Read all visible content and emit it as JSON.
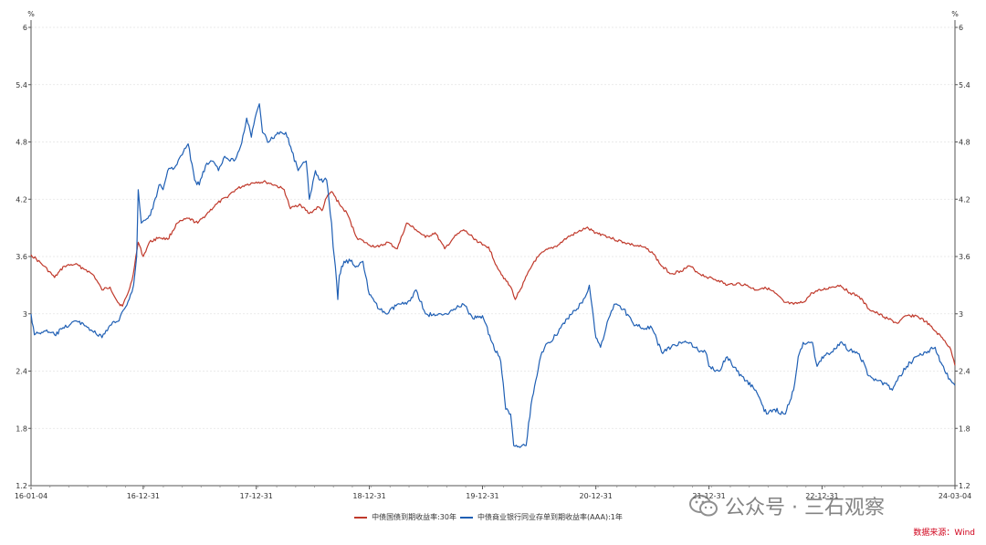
{
  "chart_data": {
    "type": "line",
    "title": "",
    "y_unit_left": "%",
    "y_unit_right": "%",
    "ylim": [
      1.2,
      6
    ],
    "yticks": [
      "6",
      "5.4",
      "4.8",
      "4.2",
      "3.6",
      "3",
      "2.4",
      "1.8",
      "1.2"
    ],
    "xlim": [
      "2016-01-04",
      "2024-03-04"
    ],
    "xticks": [
      {
        "label": "16-01-04",
        "date": "2016-01-04"
      },
      {
        "label": "16-12-31",
        "date": "2016-12-31"
      },
      {
        "label": "17-12-31",
        "date": "2017-12-31"
      },
      {
        "label": "18-12-31",
        "date": "2018-12-31"
      },
      {
        "label": "19-12-31",
        "date": "2019-12-31"
      },
      {
        "label": "20-12-31",
        "date": "2020-12-31"
      },
      {
        "label": "21-12-31",
        "date": "2021-12-31"
      },
      {
        "label": "22-12-31",
        "date": "2022-12-31"
      },
      {
        "label": "24-03-04",
        "date": "2024-03-04"
      }
    ],
    "grid": "horizontal-dashed",
    "legend_position": "bottom",
    "series": [
      {
        "name": "中债国债到期收益率:30年",
        "color": "#c0392b",
        "points": [
          [
            "2016-01-04",
            3.62
          ],
          [
            "2016-02-15",
            3.5
          ],
          [
            "2016-03-20",
            3.38
          ],
          [
            "2016-04-20",
            3.5
          ],
          [
            "2016-05-25",
            3.52
          ],
          [
            "2016-06-30",
            3.46
          ],
          [
            "2016-07-25",
            3.4
          ],
          [
            "2016-08-20",
            3.25
          ],
          [
            "2016-09-15",
            3.28
          ],
          [
            "2016-10-10",
            3.12
          ],
          [
            "2016-10-25",
            3.08
          ],
          [
            "2016-11-10",
            3.2
          ],
          [
            "2016-11-25",
            3.35
          ],
          [
            "2016-12-15",
            3.75
          ],
          [
            "2016-12-31",
            3.6
          ],
          [
            "2017-01-20",
            3.75
          ],
          [
            "2017-02-20",
            3.8
          ],
          [
            "2017-03-20",
            3.78
          ],
          [
            "2017-04-20",
            3.95
          ],
          [
            "2017-05-25",
            4.0
          ],
          [
            "2017-06-25",
            3.95
          ],
          [
            "2017-07-25",
            4.05
          ],
          [
            "2017-08-25",
            4.15
          ],
          [
            "2017-09-25",
            4.22
          ],
          [
            "2017-10-25",
            4.3
          ],
          [
            "2017-11-25",
            4.35
          ],
          [
            "2017-12-31",
            4.38
          ],
          [
            "2018-01-31",
            4.38
          ],
          [
            "2018-02-28",
            4.35
          ],
          [
            "2018-03-31",
            4.3
          ],
          [
            "2018-04-20",
            4.1
          ],
          [
            "2018-05-20",
            4.15
          ],
          [
            "2018-06-20",
            4.05
          ],
          [
            "2018-07-20",
            4.12
          ],
          [
            "2018-07-31",
            4.08
          ],
          [
            "2018-08-15",
            4.22
          ],
          [
            "2018-09-01",
            4.28
          ],
          [
            "2018-09-25",
            4.15
          ],
          [
            "2018-10-20",
            4.05
          ],
          [
            "2018-11-20",
            3.8
          ],
          [
            "2018-12-31",
            3.72
          ],
          [
            "2019-01-31",
            3.7
          ],
          [
            "2019-02-28",
            3.75
          ],
          [
            "2019-03-31",
            3.68
          ],
          [
            "2019-04-30",
            3.95
          ],
          [
            "2019-05-31",
            3.88
          ],
          [
            "2019-06-30",
            3.8
          ],
          [
            "2019-07-31",
            3.85
          ],
          [
            "2019-08-31",
            3.68
          ],
          [
            "2019-09-30",
            3.8
          ],
          [
            "2019-10-31",
            3.88
          ],
          [
            "2019-11-30",
            3.8
          ],
          [
            "2019-12-31",
            3.72
          ],
          [
            "2020-01-20",
            3.7
          ],
          [
            "2020-02-15",
            3.5
          ],
          [
            "2020-03-05",
            3.4
          ],
          [
            "2020-04-05",
            3.25
          ],
          [
            "2020-04-15",
            3.15
          ],
          [
            "2020-05-15",
            3.35
          ],
          [
            "2020-06-15",
            3.55
          ],
          [
            "2020-07-15",
            3.65
          ],
          [
            "2020-08-31",
            3.72
          ],
          [
            "2020-09-30",
            3.8
          ],
          [
            "2020-10-31",
            3.85
          ],
          [
            "2020-11-30",
            3.9
          ],
          [
            "2020-12-31",
            3.85
          ],
          [
            "2021-01-31",
            3.82
          ],
          [
            "2021-02-28",
            3.78
          ],
          [
            "2021-03-31",
            3.75
          ],
          [
            "2021-04-30",
            3.72
          ],
          [
            "2021-05-31",
            3.7
          ],
          [
            "2021-06-30",
            3.65
          ],
          [
            "2021-07-31",
            3.5
          ],
          [
            "2021-08-31",
            3.42
          ],
          [
            "2021-09-30",
            3.45
          ],
          [
            "2021-10-31",
            3.5
          ],
          [
            "2021-11-30",
            3.42
          ],
          [
            "2021-12-31",
            3.38
          ],
          [
            "2022-01-31",
            3.35
          ],
          [
            "2022-02-28",
            3.3
          ],
          [
            "2022-03-31",
            3.32
          ],
          [
            "2022-04-30",
            3.3
          ],
          [
            "2022-05-31",
            3.25
          ],
          [
            "2022-06-30",
            3.28
          ],
          [
            "2022-07-31",
            3.22
          ],
          [
            "2022-08-31",
            3.12
          ],
          [
            "2022-09-30",
            3.1
          ],
          [
            "2022-10-31",
            3.12
          ],
          [
            "2022-11-30",
            3.22
          ],
          [
            "2022-12-31",
            3.25
          ],
          [
            "2023-01-31",
            3.28
          ],
          [
            "2023-02-28",
            3.3
          ],
          [
            "2023-03-31",
            3.22
          ],
          [
            "2023-04-30",
            3.18
          ],
          [
            "2023-05-31",
            3.05
          ],
          [
            "2023-06-30",
            3.0
          ],
          [
            "2023-07-31",
            2.95
          ],
          [
            "2023-08-31",
            2.9
          ],
          [
            "2023-09-30",
            2.98
          ],
          [
            "2023-10-31",
            2.98
          ],
          [
            "2023-11-30",
            2.92
          ],
          [
            "2023-12-31",
            2.82
          ],
          [
            "2024-01-31",
            2.72
          ],
          [
            "2024-02-20",
            2.62
          ],
          [
            "2024-03-04",
            2.46
          ]
        ]
      },
      {
        "name": "中债商业银行同业存单到期收益率(AAA):1年",
        "color": "#1f5fb4",
        "points": [
          [
            "2016-01-04",
            3.0
          ],
          [
            "2016-01-15",
            2.78
          ],
          [
            "2016-02-15",
            2.82
          ],
          [
            "2016-03-20",
            2.78
          ],
          [
            "2016-04-20",
            2.85
          ],
          [
            "2016-05-20",
            2.92
          ],
          [
            "2016-06-20",
            2.9
          ],
          [
            "2016-07-20",
            2.82
          ],
          [
            "2016-08-20",
            2.75
          ],
          [
            "2016-09-15",
            2.88
          ],
          [
            "2016-10-10",
            2.92
          ],
          [
            "2016-10-31",
            3.05
          ],
          [
            "2016-11-20",
            3.2
          ],
          [
            "2016-11-30",
            3.3
          ],
          [
            "2016-12-10",
            3.6
          ],
          [
            "2016-12-15",
            4.3
          ],
          [
            "2016-12-25",
            3.95
          ],
          [
            "2017-01-15",
            4.0
          ],
          [
            "2017-01-31",
            4.1
          ],
          [
            "2017-02-20",
            4.35
          ],
          [
            "2017-03-05",
            4.3
          ],
          [
            "2017-03-20",
            4.5
          ],
          [
            "2017-04-15",
            4.55
          ],
          [
            "2017-05-10",
            4.7
          ],
          [
            "2017-05-25",
            4.78
          ],
          [
            "2017-06-15",
            4.4
          ],
          [
            "2017-06-30",
            4.35
          ],
          [
            "2017-07-20",
            4.55
          ],
          [
            "2017-08-10",
            4.6
          ],
          [
            "2017-08-31",
            4.5
          ],
          [
            "2017-09-20",
            4.65
          ],
          [
            "2017-10-20",
            4.6
          ],
          [
            "2017-11-10",
            4.75
          ],
          [
            "2017-11-30",
            5.05
          ],
          [
            "2017-12-15",
            4.85
          ],
          [
            "2017-12-31",
            5.1
          ],
          [
            "2018-01-10",
            5.2
          ],
          [
            "2018-01-20",
            4.9
          ],
          [
            "2018-02-10",
            4.8
          ],
          [
            "2018-03-10",
            4.9
          ],
          [
            "2018-04-05",
            4.9
          ],
          [
            "2018-04-25",
            4.7
          ],
          [
            "2018-05-15",
            4.5
          ],
          [
            "2018-06-10",
            4.6
          ],
          [
            "2018-06-20",
            4.2
          ],
          [
            "2018-07-10",
            4.5
          ],
          [
            "2018-07-25",
            4.4
          ],
          [
            "2018-08-15",
            4.4
          ],
          [
            "2018-08-31",
            3.95
          ],
          [
            "2018-09-05",
            3.7
          ],
          [
            "2018-09-12",
            3.5
          ],
          [
            "2018-09-20",
            3.15
          ],
          [
            "2018-09-25",
            3.4
          ],
          [
            "2018-10-10",
            3.55
          ],
          [
            "2018-10-31",
            3.55
          ],
          [
            "2018-11-20",
            3.5
          ],
          [
            "2018-12-10",
            3.55
          ],
          [
            "2018-12-31",
            3.2
          ],
          [
            "2019-01-31",
            3.05
          ],
          [
            "2019-02-28",
            3.0
          ],
          [
            "2019-03-31",
            3.1
          ],
          [
            "2019-04-30",
            3.1
          ],
          [
            "2019-05-31",
            3.25
          ],
          [
            "2019-06-30",
            3.0
          ],
          [
            "2019-07-31",
            2.98
          ],
          [
            "2019-08-31",
            3.0
          ],
          [
            "2019-09-30",
            3.05
          ],
          [
            "2019-10-31",
            3.1
          ],
          [
            "2019-11-30",
            2.95
          ],
          [
            "2019-12-31",
            2.98
          ],
          [
            "2020-01-31",
            2.7
          ],
          [
            "2020-02-28",
            2.5
          ],
          [
            "2020-03-15",
            2.0
          ],
          [
            "2020-03-31",
            1.95
          ],
          [
            "2020-04-10",
            1.62
          ],
          [
            "2020-04-30",
            1.6
          ],
          [
            "2020-05-20",
            1.62
          ],
          [
            "2020-06-05",
            2.05
          ],
          [
            "2020-06-20",
            2.3
          ],
          [
            "2020-07-10",
            2.6
          ],
          [
            "2020-07-31",
            2.7
          ],
          [
            "2020-08-31",
            2.8
          ],
          [
            "2020-09-30",
            2.95
          ],
          [
            "2020-10-31",
            3.05
          ],
          [
            "2020-11-30",
            3.2
          ],
          [
            "2020-12-10",
            3.3
          ],
          [
            "2020-12-20",
            3.05
          ],
          [
            "2020-12-31",
            2.75
          ],
          [
            "2021-01-15",
            2.65
          ],
          [
            "2021-02-10",
            2.95
          ],
          [
            "2021-02-28",
            3.1
          ],
          [
            "2021-03-31",
            3.05
          ],
          [
            "2021-04-30",
            2.9
          ],
          [
            "2021-05-31",
            2.85
          ],
          [
            "2021-06-30",
            2.85
          ],
          [
            "2021-07-31",
            2.6
          ],
          [
            "2021-08-31",
            2.65
          ],
          [
            "2021-09-30",
            2.7
          ],
          [
            "2021-10-31",
            2.7
          ],
          [
            "2021-11-30",
            2.6
          ],
          [
            "2021-12-20",
            2.6
          ],
          [
            "2021-12-31",
            2.45
          ],
          [
            "2022-01-31",
            2.4
          ],
          [
            "2022-02-28",
            2.55
          ],
          [
            "2022-03-31",
            2.4
          ],
          [
            "2022-04-30",
            2.3
          ],
          [
            "2022-05-31",
            2.2
          ],
          [
            "2022-06-20",
            2.05
          ],
          [
            "2022-07-05",
            1.95
          ],
          [
            "2022-07-31",
            2.0
          ],
          [
            "2022-08-31",
            1.95
          ],
          [
            "2022-09-15",
            2.05
          ],
          [
            "2022-09-30",
            2.2
          ],
          [
            "2022-10-15",
            2.55
          ],
          [
            "2022-10-31",
            2.7
          ],
          [
            "2022-11-30",
            2.7
          ],
          [
            "2022-12-15",
            2.45
          ],
          [
            "2022-12-31",
            2.55
          ],
          [
            "2023-01-31",
            2.6
          ],
          [
            "2023-02-28",
            2.7
          ],
          [
            "2023-03-31",
            2.62
          ],
          [
            "2023-04-30",
            2.58
          ],
          [
            "2023-05-31",
            2.35
          ],
          [
            "2023-06-30",
            2.3
          ],
          [
            "2023-07-31",
            2.25
          ],
          [
            "2023-08-15",
            2.2
          ],
          [
            "2023-08-31",
            2.3
          ],
          [
            "2023-09-30",
            2.45
          ],
          [
            "2023-10-31",
            2.55
          ],
          [
            "2023-11-30",
            2.6
          ],
          [
            "2023-12-31",
            2.65
          ],
          [
            "2024-01-15",
            2.5
          ],
          [
            "2024-01-31",
            2.4
          ],
          [
            "2024-02-20",
            2.3
          ],
          [
            "2024-03-04",
            2.25
          ]
        ]
      }
    ]
  },
  "footer": {
    "source": "数据来源：Wind",
    "watermark": "公众号 · 三石观察"
  }
}
